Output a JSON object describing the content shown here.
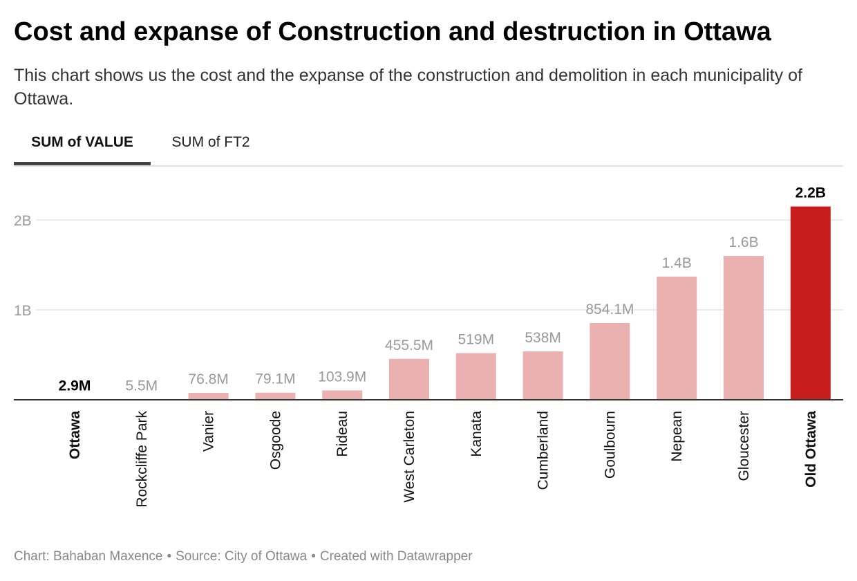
{
  "header": {
    "title": "Cost and expanse of Construction and destruction in Ottawa",
    "subtitle": "This chart shows us the cost and the expanse of the construction and demolition in each municipality of Ottawa."
  },
  "tabs": [
    {
      "label": "SUM of VALUE",
      "active": true
    },
    {
      "label": "SUM of FT2",
      "active": false
    }
  ],
  "chart_data": {
    "type": "bar",
    "categories": [
      "Ottawa",
      "Rockcliffe Park",
      "Vanier",
      "Osgoode",
      "Rideau",
      "West Carleton",
      "Kanata",
      "Cumberland",
      "Goulbourn",
      "Nepean",
      "Gloucester",
      "Old Ottawa"
    ],
    "values": [
      2900000,
      5500000,
      76800000,
      79100000,
      103900000,
      455500000,
      519000000,
      538000000,
      854100000,
      1370000000,
      1600000000,
      2150000000
    ],
    "value_labels": [
      "2.9M",
      "5.5M",
      "76.8M",
      "79.1M",
      "103.9M",
      "455.5M",
      "519M",
      "538M",
      "854.1M",
      "1.4B",
      "1.6B",
      "2.2B"
    ],
    "highlighted": [
      "Ottawa",
      "Old Ottawa"
    ],
    "y_ticks": [
      {
        "value": 1000000000,
        "label": "1B"
      },
      {
        "value": 2000000000,
        "label": "2B"
      }
    ],
    "ylim": [
      0,
      2000000000
    ],
    "grid": true,
    "colors": {
      "bar": "#eab1b0",
      "bar_highlight": "#c71e1d",
      "label": "#999999",
      "label_highlight": "#000000",
      "grid": "#e6e6e6",
      "axis": "#333333"
    }
  },
  "footer": {
    "chart_by": "Chart: Bahaban Maxence",
    "source": "Source: City of Ottawa",
    "created": "Created with Datawrapper"
  }
}
